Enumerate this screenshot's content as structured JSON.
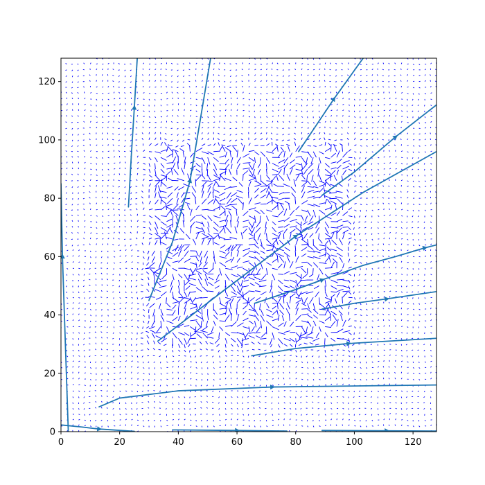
{
  "chart_data": {
    "type": "quiver",
    "title": "",
    "xlabel": "",
    "ylabel": "",
    "xlim": [
      0,
      128
    ],
    "ylim": [
      0,
      128
    ],
    "x_ticks": [
      0,
      20,
      40,
      60,
      80,
      100,
      120
    ],
    "y_ticks": [
      0,
      20,
      40,
      60,
      80,
      100,
      120
    ],
    "grid": false,
    "legend": "none",
    "colors": {
      "quiver": "#0000ff",
      "streamlines": "#1f77b4"
    },
    "vector_field": {
      "grid_step": 2,
      "x_range": [
        0,
        128
      ],
      "y_range": [
        0,
        128
      ],
      "high_magnitude_region": {
        "x": [
          32,
          96
        ],
        "y": [
          32,
          96
        ]
      }
    },
    "streamlines": [
      {
        "points": [
          [
            2.5,
            0
          ],
          [
            1.5,
            30
          ],
          [
            0.5,
            60
          ],
          [
            0,
            85
          ]
        ],
        "arrow_at": [
          0.5,
          60
        ]
      },
      {
        "points": [
          [
            23,
            77
          ],
          [
            24,
            95
          ],
          [
            25,
            111
          ],
          [
            26,
            128
          ]
        ],
        "arrow_at": [
          25,
          111
        ]
      },
      {
        "points": [
          [
            30,
            45
          ],
          [
            38,
            65
          ],
          [
            44,
            86
          ],
          [
            51,
            128
          ]
        ],
        "arrow_at": [
          44,
          86
        ]
      },
      {
        "points": [
          [
            81,
            96
          ],
          [
            87,
            105
          ],
          [
            93,
            114
          ],
          [
            103,
            128
          ]
        ],
        "arrow_at": [
          93,
          114
        ]
      },
      {
        "points": [
          [
            89,
            81
          ],
          [
            100,
            89
          ],
          [
            114,
            101
          ],
          [
            128,
            112
          ]
        ],
        "arrow_at": [
          114,
          101
        ]
      },
      {
        "points": [
          [
            33,
            31
          ],
          [
            55,
            48
          ],
          [
            80,
            67
          ],
          [
            103,
            82
          ],
          [
            128,
            96
          ]
        ],
        "arrow_at": [
          80,
          67
        ]
      },
      {
        "points": [
          [
            103,
            57
          ],
          [
            114,
            60
          ],
          [
            124,
            63
          ],
          [
            128,
            64
          ]
        ],
        "arrow_at": [
          124,
          63
        ]
      },
      {
        "points": [
          [
            66,
            44
          ],
          [
            78,
            48
          ],
          [
            89,
            52
          ],
          [
            103,
            57
          ]
        ],
        "arrow_at": [
          89,
          52
        ]
      },
      {
        "points": [
          [
            89,
            42
          ],
          [
            100,
            44
          ],
          [
            111,
            45.5
          ],
          [
            128,
            48
          ]
        ],
        "arrow_at": [
          111,
          45.5
        ]
      },
      {
        "points": [
          [
            65,
            26
          ],
          [
            80,
            28.5
          ],
          [
            98,
            30.2
          ],
          [
            128,
            32
          ]
        ],
        "arrow_at": [
          98,
          30.2
        ]
      },
      {
        "points": [
          [
            13,
            8.5
          ],
          [
            20,
            11.5
          ],
          [
            40,
            14
          ],
          [
            72,
            15.3
          ],
          [
            128,
            16
          ]
        ],
        "arrow_at": [
          72,
          15.3
        ]
      },
      {
        "points": [
          [
            0,
            2.3
          ],
          [
            7,
            1.6
          ],
          [
            13,
            0.9
          ],
          [
            25,
            0.1
          ]
        ],
        "arrow_at": [
          13,
          0.9
        ]
      },
      {
        "points": [
          [
            38,
            0.6
          ],
          [
            60,
            0.4
          ],
          [
            77,
            0.2
          ]
        ],
        "arrow_at": [
          60,
          0.4
        ]
      },
      {
        "points": [
          [
            89,
            0.4
          ],
          [
            111,
            0.3
          ],
          [
            128,
            0.2
          ]
        ],
        "arrow_at": [
          111,
          0.3
        ]
      }
    ]
  }
}
